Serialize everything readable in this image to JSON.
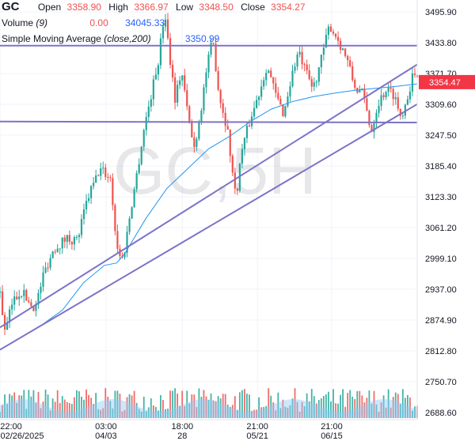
{
  "header": {
    "symbol": "GC",
    "open_label": "Open",
    "open_value": "3358.90",
    "high_label": "High",
    "high_value": "3366.97",
    "low_label": "Low",
    "low_value": "3348.50",
    "close_label": "Close",
    "close_value": "3354.27"
  },
  "volume_legend": {
    "label": "Volume",
    "param": "(9)",
    "value1": "0.00",
    "value2": "34045.33"
  },
  "sma_legend": {
    "label": "Simple Moving Average",
    "param": "(close,200)",
    "value": "3350.99"
  },
  "watermark": "GC,5H",
  "colors": {
    "up": "#26a69a",
    "down": "#ef5350",
    "sma": "#2196f3",
    "trendline": "#7b73c8",
    "vol_area": "#90caf9",
    "price_badge": "#f23645"
  },
  "chart_data": {
    "type": "candlestick",
    "y_ticks": [
      "3495.90",
      "3433.80",
      "3371.70",
      "3309.60",
      "3247.50",
      "3185.40",
      "3123.30",
      "3061.20",
      "2999.10",
      "2937.00",
      "2874.90",
      "2812.80",
      "2750.70",
      "2688.60"
    ],
    "x_ticks": [
      {
        "top": "22:00",
        "bottom": "02/26/2025",
        "at": 0.0
      },
      {
        "top": "03:00",
        "bottom": "04/03",
        "at": 0.254
      },
      {
        "top": "18:00",
        "bottom": "28",
        "at": 0.437
      },
      {
        "top": "21:00",
        "bottom": "05/21",
        "at": 0.617
      },
      {
        "top": "21:00",
        "bottom": "06/15",
        "at": 0.795
      }
    ],
    "ylim": [
      2674,
      3520
    ],
    "last_price": "3354.47",
    "price_path": [
      [
        0.0,
        2930
      ],
      [
        0.012,
        2848
      ],
      [
        0.03,
        2912
      ],
      [
        0.05,
        2935
      ],
      [
        0.07,
        2910
      ],
      [
        0.085,
        2900
      ],
      [
        0.105,
        2970
      ],
      [
        0.13,
        3020
      ],
      [
        0.16,
        3040
      ],
      [
        0.185,
        3035
      ],
      [
        0.21,
        3120
      ],
      [
        0.24,
        3180
      ],
      [
        0.265,
        3160
      ],
      [
        0.28,
        3020
      ],
      [
        0.295,
        2995
      ],
      [
        0.31,
        3080
      ],
      [
        0.33,
        3180
      ],
      [
        0.345,
        3260
      ],
      [
        0.36,
        3320
      ],
      [
        0.38,
        3400
      ],
      [
        0.395,
        3500
      ],
      [
        0.405,
        3420
      ],
      [
        0.42,
        3320
      ],
      [
        0.435,
        3380
      ],
      [
        0.45,
        3290
      ],
      [
        0.465,
        3220
      ],
      [
        0.48,
        3290
      ],
      [
        0.495,
        3380
      ],
      [
        0.51,
        3440
      ],
      [
        0.525,
        3330
      ],
      [
        0.545,
        3260
      ],
      [
        0.565,
        3120
      ],
      [
        0.58,
        3220
      ],
      [
        0.6,
        3280
      ],
      [
        0.62,
        3330
      ],
      [
        0.64,
        3390
      ],
      [
        0.66,
        3330
      ],
      [
        0.68,
        3290
      ],
      [
        0.7,
        3370
      ],
      [
        0.715,
        3415
      ],
      [
        0.73,
        3380
      ],
      [
        0.75,
        3340
      ],
      [
        0.77,
        3400
      ],
      [
        0.79,
        3470
      ],
      [
        0.81,
        3440
      ],
      [
        0.83,
        3405
      ],
      [
        0.85,
        3345
      ],
      [
        0.87,
        3330
      ],
      [
        0.89,
        3255
      ],
      [
        0.905,
        3310
      ],
      [
        0.925,
        3340
      ],
      [
        0.945,
        3330
      ],
      [
        0.96,
        3285
      ],
      [
        0.975,
        3320
      ],
      [
        0.99,
        3370
      ],
      [
        1.0,
        3355
      ]
    ],
    "sma_path": [
      [
        0.0,
        2815
      ],
      [
        0.05,
        2840
      ],
      [
        0.1,
        2865
      ],
      [
        0.15,
        2895
      ],
      [
        0.2,
        2950
      ],
      [
        0.25,
        2985
      ],
      [
        0.28,
        2990
      ],
      [
        0.3,
        3010
      ],
      [
        0.35,
        3080
      ],
      [
        0.4,
        3140
      ],
      [
        0.45,
        3180
      ],
      [
        0.5,
        3220
      ],
      [
        0.55,
        3245
      ],
      [
        0.6,
        3275
      ],
      [
        0.65,
        3300
      ],
      [
        0.7,
        3315
      ],
      [
        0.75,
        3325
      ],
      [
        0.8,
        3332
      ],
      [
        0.85,
        3338
      ],
      [
        0.9,
        3342
      ],
      [
        0.95,
        3346
      ],
      [
        1.0,
        3351
      ]
    ],
    "trendlines": [
      {
        "x1": 0.0,
        "y1": 3428,
        "x2": 1.0,
        "y2": 3428
      },
      {
        "x1": 0.0,
        "y1": 3275,
        "x2": 1.0,
        "y2": 3273
      },
      {
        "x1": 0.0,
        "y1": 2860,
        "x2": 1.0,
        "y2": 3390
      },
      {
        "x1": 0.0,
        "y1": 2815,
        "x2": 1.0,
        "y2": 3310
      }
    ]
  }
}
